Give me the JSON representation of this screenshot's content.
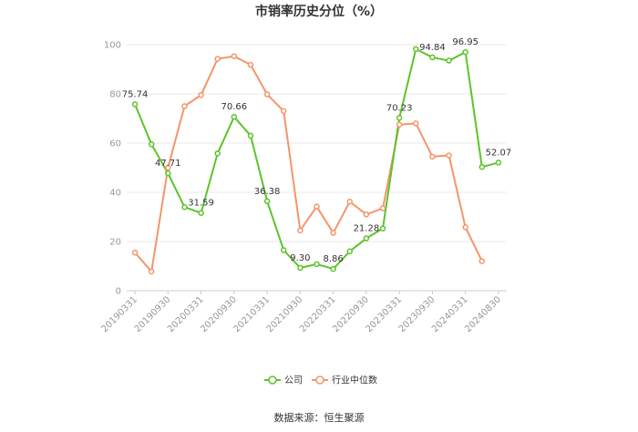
{
  "chart_data": {
    "type": "line",
    "title": "市销率历史分位（%）",
    "source": "数据来源：恒生聚源",
    "ylim": [
      0,
      100
    ],
    "yticks": [
      0,
      20,
      40,
      60,
      80,
      100
    ],
    "grid": true,
    "legend_position": "bottom",
    "x": [
      "20190331",
      "20190630",
      "20190930",
      "20191231",
      "20200331",
      "20200630",
      "20200930",
      "20201231",
      "20210331",
      "20210630",
      "20210930",
      "20211231",
      "20220331",
      "20220630",
      "20220930",
      "20221231",
      "20230331",
      "20230630",
      "20230930",
      "20231231",
      "20240331",
      "20240630",
      "20240830"
    ],
    "x_tick_labels": [
      "20190331",
      "20190930",
      "20200331",
      "20200930",
      "20210331",
      "20210930",
      "20220331",
      "20220930",
      "20230331",
      "20230930",
      "20240331",
      "20240830"
    ],
    "series": [
      {
        "name": "公司",
        "color": "#5cc42b",
        "values": [
          75.74,
          59.5,
          47.71,
          34.0,
          31.59,
          55.8,
          70.66,
          63.0,
          36.38,
          16.5,
          9.3,
          10.8,
          8.86,
          16.0,
          21.28,
          25.3,
          70.23,
          98.2,
          94.84,
          93.5,
          96.95,
          50.3,
          52.07
        ],
        "labels": [
          "75.74",
          null,
          "47.71",
          null,
          "31.59",
          null,
          "70.66",
          null,
          "36.38",
          null,
          "9.30",
          null,
          "8.86",
          null,
          "21.28",
          null,
          "70.23",
          null,
          "94.84",
          null,
          "96.95",
          null,
          "52.07"
        ]
      },
      {
        "name": "行业中位数",
        "color": "#f4956a",
        "values": [
          15.5,
          7.8,
          50.0,
          75.0,
          79.5,
          94.2,
          95.3,
          91.8,
          79.8,
          73.0,
          24.5,
          34.2,
          23.5,
          36.2,
          31.0,
          33.5,
          67.5,
          68.0,
          54.5,
          55.0,
          25.8,
          12.0,
          null
        ]
      }
    ]
  }
}
